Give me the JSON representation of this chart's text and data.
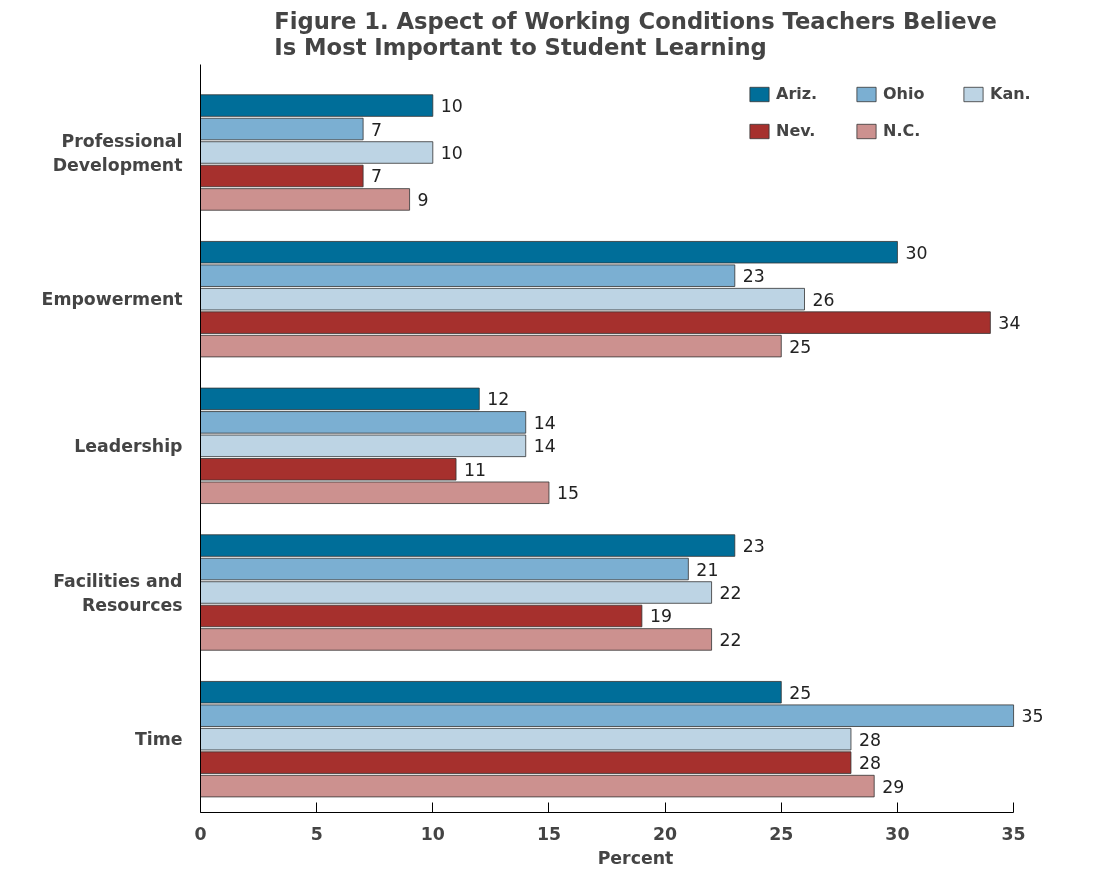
{
  "chart_data": {
    "type": "bar",
    "orientation": "horizontal",
    "title": "Figure 1. Aspect of Working Conditions Teachers Believe\nIs Most Important to Student Learning",
    "xlabel": "Percent",
    "categories": [
      "Professional Development",
      "Empowerment",
      "Leadership",
      "Facilities and Resources",
      "Time"
    ],
    "series": [
      {
        "name": "Ariz.",
        "color": "#006e99",
        "values": [
          10,
          30,
          12,
          23,
          25
        ]
      },
      {
        "name": "Ohio",
        "color": "#7bafd2",
        "values": [
          7,
          23,
          14,
          21,
          35
        ]
      },
      {
        "name": "Kan.",
        "color": "#bdd4e4",
        "values": [
          10,
          26,
          14,
          22,
          28
        ]
      },
      {
        "name": "Nev.",
        "color": "#a6302d",
        "values": [
          7,
          34,
          11,
          19,
          28
        ]
      },
      {
        "name": "N.C.",
        "color": "#cc918f",
        "values": [
          9,
          25,
          15,
          22,
          29
        ]
      }
    ],
    "xlim": [
      0,
      35
    ],
    "xticks": [
      0,
      5,
      10,
      15,
      20,
      25,
      30,
      35
    ],
    "data_labels": true,
    "grid": false,
    "legend": "top right"
  }
}
